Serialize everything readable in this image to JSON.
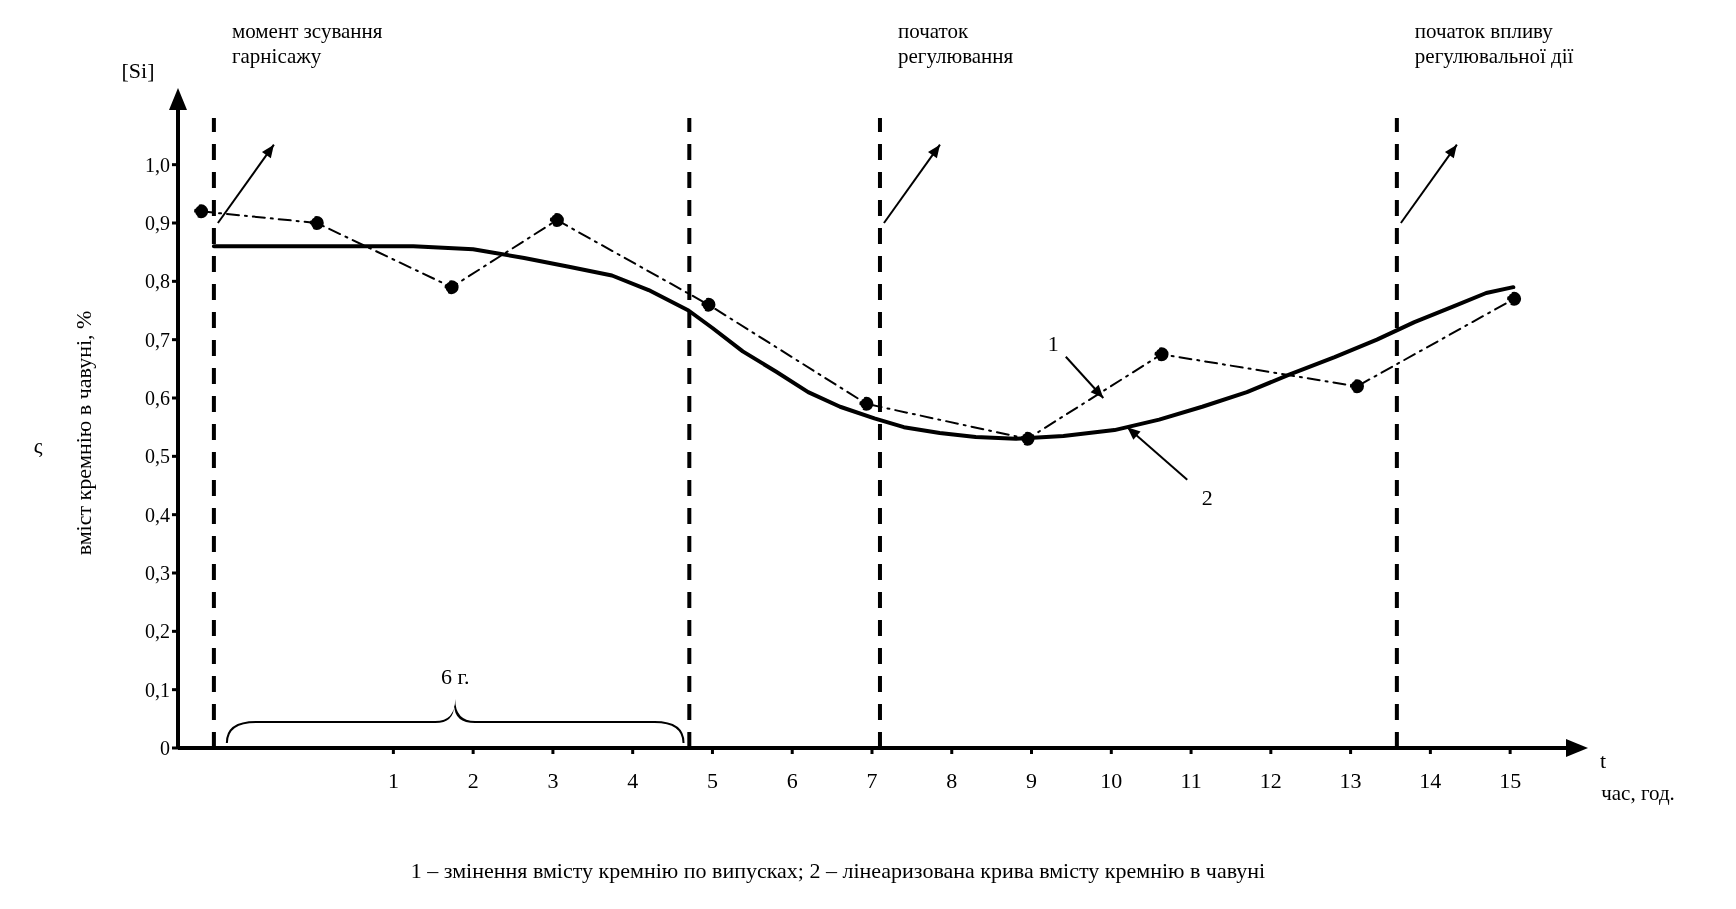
{
  "chart_data": {
    "type": "line",
    "xlabel": "час, год.",
    "ylabel": "вміст кремнію в чавуні, %",
    "series": [
      {
        "name": null,
        "color": "#000000",
        "marker": "circle",
        "line_style": "dashed",
        "x": [
          -1.41,
          0.04,
          1.73,
          3.05,
          4.95,
          6.93,
          8.95,
          10.63,
          13.08,
          15.05
        ],
        "values": [
          0.92,
          0.9,
          0.79,
          0.905,
          0.76,
          0.59,
          0.53,
          0.675,
          0.62,
          0.77
        ]
      },
      {
        "name": null,
        "color": "#000000",
        "marker": "none",
        "line_style": "solid",
        "x": [
          -1.25,
          0,
          1.25,
          2.0,
          2.64,
          3.2,
          3.74,
          4.2,
          4.7,
          5.0,
          5.38,
          5.8,
          6.2,
          6.6,
          7.03,
          7.4,
          7.85,
          8.3,
          8.8,
          9.4,
          10.04,
          10.6,
          11.14,
          11.7,
          12.23,
          12.8,
          13.33,
          13.8,
          14.29,
          14.7,
          15.04
        ],
        "values": [
          0.86,
          0.86,
          0.86,
          0.855,
          0.84,
          0.825,
          0.81,
          0.785,
          0.75,
          0.72,
          0.68,
          0.645,
          0.61,
          0.585,
          0.565,
          0.55,
          0.54,
          0.533,
          0.53,
          0.535,
          0.545,
          0.563,
          0.585,
          0.61,
          0.64,
          0.67,
          0.7,
          0.73,
          0.757,
          0.78,
          0.79
        ]
      }
    ],
    "xlim": [
      -1.7,
      15.6
    ],
    "xticks": [
      1,
      2,
      3,
      4,
      5,
      6,
      7,
      8,
      9,
      10,
      11,
      12,
      13,
      14,
      15
    ],
    "ylim": [
      0,
      1.08
    ],
    "yticks": [
      0,
      {
        "value": 0.1,
        "label": "0,1"
      },
      {
        "value": 0.2,
        "label": "0,2"
      },
      {
        "value": 0.3,
        "label": "0,3"
      },
      {
        "value": 0.4,
        "label": "0,4"
      },
      {
        "value": 0.5,
        "label": "0,5"
      },
      {
        "value": 0.6,
        "label": "0,6"
      },
      {
        "value": 0.7,
        "label": "0,7"
      },
      {
        "value": 0.8,
        "label": "0,8"
      },
      {
        "value": 0.9,
        "label": "0,9"
      },
      {
        "value": 1.0,
        "label": "1,0"
      }
    ],
    "ref_lines": [
      {
        "axis": "x",
        "value": -1.25,
        "label": "момент зсування гарнісажу",
        "color": "#000000",
        "line_style": "dashed"
      },
      {
        "axis": "x",
        "value": 4.71,
        "label": null,
        "color": "#000000",
        "line_style": "dashed"
      },
      {
        "axis": "x",
        "value": 7.1,
        "label": "початок регулювання",
        "color": "#000000",
        "line_style": "dashed"
      },
      {
        "axis": "x",
        "value": 13.58,
        "label": "початок впливу регулювальної дії",
        "color": "#000000",
        "line_style": "dashed"
      }
    ],
    "annotations": [
      {
        "text": "1",
        "x": 9.9,
        "y": 0.6
      },
      {
        "text": "2",
        "x": 10.2,
        "y": 0.55
      },
      "[Si]",
      "t",
      "ς",
      "6 г.",
      "1 – змінення вмісту кремнію по випусках; 2 – лінеаризована крива вмісту кремнію в чавуні"
    ]
  }
}
